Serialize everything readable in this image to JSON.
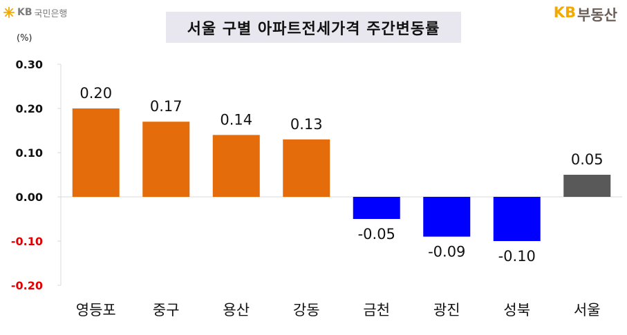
{
  "header": {
    "bank_logo_kb": "KB",
    "bank_logo_name": "국민은행",
    "brand_kb": "KB",
    "brand_name": "부동산",
    "title": "서울 구별 아파트전세가격 주간변동률",
    "unit": "(%)"
  },
  "colors": {
    "positive_bar": "#e46c0a",
    "negative_bar": "#0000ff",
    "total_bar": "#595959",
    "negative_tick": "#e00000",
    "title_bg": "#e8e6ee"
  },
  "chart_data": {
    "type": "bar",
    "title": "서울 구별 아파트전세가격 주간변동률",
    "ylabel": "(%)",
    "ylim": [
      -0.2,
      0.3
    ],
    "yticks": [
      0.3,
      0.2,
      0.1,
      0.0,
      -0.1,
      -0.2
    ],
    "ytick_labels": [
      "0.30",
      "0.20",
      "0.10",
      "0.00",
      "-0.10",
      "-0.20"
    ],
    "categories": [
      "영등포",
      "중구",
      "용산",
      "강동",
      "금천",
      "광진",
      "성북",
      "서울"
    ],
    "values": [
      0.2,
      0.17,
      0.14,
      0.13,
      -0.05,
      -0.09,
      -0.1,
      0.05
    ],
    "value_labels": [
      "0.20",
      "0.17",
      "0.14",
      "0.13",
      "-0.05",
      "-0.09",
      "-0.10",
      "0.05"
    ],
    "grid": false,
    "legend": "none"
  }
}
